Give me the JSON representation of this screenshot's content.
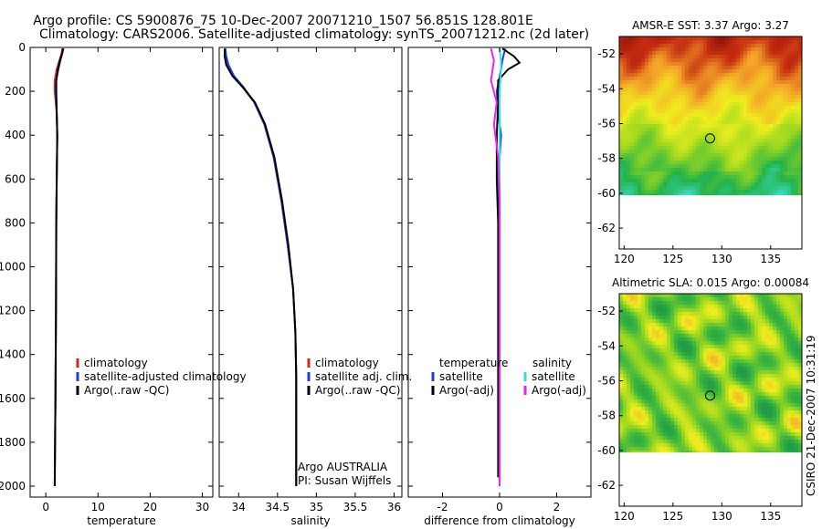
{
  "title_line1": "Argo profile: CS 5900876_75 10-Dec-2007 20071210_1507 56.851S 128.801E",
  "title_line2": "Climatology: CARS2006. Satellite-adjusted climatology: synTS_20071212.nc (2d later)",
  "side_stamp": "CSIRO 21-Dec-2007 10:31:19",
  "colors": {
    "climatology": "#dd2222",
    "satellite": "#1f3fd8",
    "argo": "#000000",
    "sal_satellite": "#30e0e0",
    "sal_argo": "#ee22ee"
  },
  "chart_data": [
    {
      "id": "temperature",
      "type": "line",
      "xlabel": "temperature",
      "ylabel": "",
      "xlim": [
        -3,
        32
      ],
      "ylim": [
        2050,
        0
      ],
      "xticks": [
        0,
        10,
        20,
        30
      ],
      "xtick_labels": [
        "0",
        "10",
        "20",
        "30"
      ],
      "yticks": [
        0,
        200,
        400,
        600,
        800,
        1000,
        1200,
        1400,
        1600,
        1800,
        2000
      ],
      "ytick_labels": [
        "0",
        "200",
        "400",
        "600",
        "800",
        "1000",
        "1200",
        "1400",
        "1600",
        "1800",
        "2000"
      ],
      "legend": [
        "climatology",
        "satellite-adjusted climatology",
        "Argo(..raw -QC)"
      ],
      "series": [
        {
          "name": "climatology",
          "color": "#dd2222",
          "x": [
            3.2,
            3.0,
            2.6,
            2.1,
            1.7,
            1.7,
            2.1,
            2.2,
            2.1,
            2.0,
            1.95,
            1.85,
            1.7
          ],
          "y": [
            5,
            30,
            60,
            100,
            150,
            200,
            300,
            400,
            600,
            800,
            1200,
            1600,
            2000
          ]
        },
        {
          "name": "satellite-adjusted climatology",
          "color": "#1f3fd8",
          "x": [
            3.4,
            3.1,
            2.8,
            2.4,
            2.0,
            1.9,
            2.1,
            2.2,
            2.1,
            2.0,
            1.95,
            1.85,
            1.7
          ],
          "y": [
            5,
            30,
            60,
            100,
            150,
            200,
            300,
            400,
            600,
            800,
            1200,
            1600,
            2000
          ]
        },
        {
          "name": "Argo(..raw -QC)",
          "color": "#000000",
          "x": [
            3.3,
            3.1,
            2.7,
            2.3,
            2.0,
            2.0,
            2.1,
            2.2,
            2.1,
            2.0,
            1.95,
            1.85,
            1.7
          ],
          "y": [
            5,
            30,
            60,
            100,
            150,
            200,
            300,
            400,
            600,
            800,
            1200,
            1600,
            2000
          ]
        }
      ]
    },
    {
      "id": "salinity",
      "type": "line",
      "xlabel": "salinity",
      "ylabel": "",
      "xlim": [
        33.75,
        36.1
      ],
      "ylim": [
        2050,
        0
      ],
      "xticks": [
        34,
        34.5,
        35,
        35.5,
        36
      ],
      "xtick_labels": [
        "34",
        "34.5",
        "35",
        "35.5",
        "36"
      ],
      "yticks": [
        0,
        200,
        400,
        600,
        800,
        1000,
        1200,
        1400,
        1600,
        1800,
        2000
      ],
      "legend": [
        "climatology",
        "satellite adj. clim.",
        "Argo(..raw -QC)"
      ],
      "annotation": [
        "Argo AUSTRALIA",
        "PI: Susan Wijffels"
      ],
      "series": [
        {
          "name": "climatology",
          "color": "#dd2222",
          "x": [
            33.83,
            33.83,
            33.86,
            33.93,
            34.05,
            34.2,
            34.33,
            34.45,
            34.55,
            34.63,
            34.7,
            34.73,
            34.74,
            34.74,
            34.74
          ],
          "y": [
            5,
            40,
            80,
            130,
            180,
            250,
            350,
            500,
            700,
            900,
            1100,
            1300,
            1500,
            1800,
            2000
          ]
        },
        {
          "name": "satellite adj. clim.",
          "color": "#1f3fd8",
          "x": [
            33.83,
            33.84,
            33.87,
            33.94,
            34.06,
            34.2,
            34.33,
            34.45,
            34.55,
            34.63,
            34.7,
            34.73,
            34.74,
            34.74,
            34.74
          ],
          "y": [
            5,
            40,
            80,
            130,
            180,
            250,
            350,
            500,
            700,
            900,
            1100,
            1300,
            1500,
            1800,
            2000
          ]
        },
        {
          "name": "Argo(..raw -QC)",
          "color": "#000000",
          "x": [
            33.82,
            33.82,
            33.84,
            33.92,
            34.05,
            34.21,
            34.34,
            34.46,
            34.56,
            34.64,
            34.7,
            34.73,
            34.74,
            34.74,
            34.74
          ],
          "y": [
            5,
            40,
            80,
            130,
            180,
            250,
            350,
            500,
            700,
            900,
            1100,
            1300,
            1500,
            1800,
            2000
          ]
        }
      ]
    },
    {
      "id": "difference",
      "type": "line",
      "xlabel": "difference from climatology",
      "ylabel": "",
      "xlim": [
        -3.2,
        3.2
      ],
      "ylim": [
        2050,
        0
      ],
      "xticks": [
        -2,
        0,
        2
      ],
      "xtick_labels": [
        "-2",
        "0",
        "2"
      ],
      "yticks": [
        0,
        200,
        400,
        600,
        800,
        1000,
        1200,
        1400,
        1600,
        1800,
        2000
      ],
      "legend_left_title": "temperature",
      "legend_left": [
        "satellite",
        "Argo(-adj)"
      ],
      "legend_right_title": "salinity",
      "legend_right": [
        "satellite",
        "Argo(-adj)"
      ],
      "series": [
        {
          "name": "temperature satellite",
          "color": "#1f3fd8",
          "x": [
            0.2,
            0.15,
            0.1,
            0.05,
            -0.1,
            -0.05,
            0.05,
            -0.05,
            0.0,
            0.0,
            0.0,
            0.0,
            0.0
          ],
          "y": [
            5,
            30,
            60,
            100,
            200,
            300,
            400,
            600,
            800,
            1000,
            1400,
            1800,
            2000
          ]
        },
        {
          "name": "temperature Argo(-adj)",
          "color": "#000000",
          "x": [
            0.1,
            0.5,
            0.7,
            0.3,
            -0.05,
            -0.05,
            -0.1,
            -0.1,
            -0.05,
            -0.05,
            -0.05,
            -0.05,
            -0.05
          ],
          "y": [
            5,
            40,
            70,
            100,
            150,
            250,
            400,
            600,
            800,
            1000,
            1400,
            1800,
            1960
          ]
        },
        {
          "name": "salinity satellite",
          "color": "#30e0e0",
          "x": [
            0.0,
            0.05,
            0.05,
            0.0,
            0.0,
            0.0,
            0.0,
            0.0,
            0.0,
            0.0
          ],
          "y": [
            5,
            60,
            100,
            200,
            400,
            600,
            800,
            1200,
            1600,
            2000
          ]
        },
        {
          "name": "salinity Argo(-adj)",
          "color": "#ee22ee",
          "x": [
            -0.3,
            -0.2,
            -0.3,
            -0.1,
            -0.2,
            -0.05,
            0.0,
            0.0,
            0.0,
            0.0,
            0.0
          ],
          "y": [
            5,
            60,
            150,
            250,
            350,
            500,
            700,
            900,
            1200,
            1600,
            2000
          ]
        }
      ]
    },
    {
      "id": "sst-map",
      "type": "heatmap",
      "title": "AMSR-E SST: 3.37 Argo: 3.27",
      "xlim": [
        119.5,
        138.2
      ],
      "ylim": [
        -63.2,
        -51
      ],
      "xticks": [
        120,
        125,
        130,
        135
      ],
      "xtick_labels": [
        "120",
        "125",
        "130",
        "135"
      ],
      "yticks": [
        -52,
        -54,
        -56,
        -58,
        -60,
        -62
      ],
      "ytick_labels": [
        "-52",
        "-54",
        "-56",
        "-58",
        "-60",
        "-62"
      ],
      "data_ylim": [
        -60.1,
        -51
      ],
      "marker": {
        "lon": 128.8,
        "lat": -56.85
      },
      "colormap": [
        "#40e0d0",
        "#22b24a",
        "#9bd81f",
        "#f0ee1e",
        "#f3a428",
        "#c42b10",
        "#8a1208"
      ]
    },
    {
      "id": "sla-map",
      "type": "heatmap",
      "title": "Altimetric SLA: 0.015 Argo: 0.00084",
      "xlim": [
        119.5,
        138.2
      ],
      "ylim": [
        -63.2,
        -51
      ],
      "xticks": [
        120,
        125,
        130,
        135
      ],
      "xtick_labels": [
        "120",
        "125",
        "130",
        "135"
      ],
      "yticks": [
        -52,
        -54,
        -56,
        -58,
        -60,
        -62
      ],
      "ytick_labels": [
        "-52",
        "-54",
        "-56",
        "-58",
        "-60",
        "-62"
      ],
      "data_ylim": [
        -60.1,
        -51
      ],
      "marker": {
        "lon": 128.8,
        "lat": -56.85
      },
      "colormap": [
        "#1f9c45",
        "#3fb83f",
        "#9bd81f",
        "#f0ee1e",
        "#f3a428",
        "#e0642a"
      ]
    }
  ]
}
